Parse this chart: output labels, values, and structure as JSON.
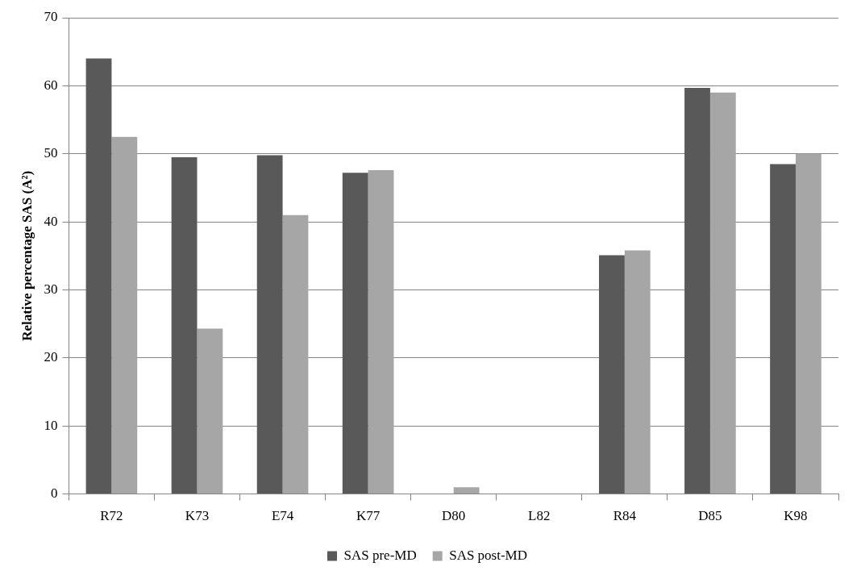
{
  "chart_data": {
    "type": "bar",
    "ylabel": "Relative percentage SAS (A²)",
    "categories": [
      "R72",
      "K73",
      "E74",
      "K77",
      "D80",
      "L82",
      "R84",
      "D85",
      "K98"
    ],
    "series": [
      {
        "name": "SAS pre-MD",
        "color": "#595959",
        "values": [
          64,
          49.5,
          49.8,
          47.2,
          0,
          0,
          35.1,
          59.7,
          48.5
        ]
      },
      {
        "name": "SAS post-MD",
        "color": "#a6a6a6",
        "values": [
          52.5,
          24.3,
          41,
          47.6,
          1,
          0,
          35.8,
          59,
          50
        ]
      }
    ],
    "ylim": [
      0,
      70
    ],
    "yticks": [
      0,
      10,
      20,
      30,
      40,
      50,
      60,
      70
    ],
    "grid": "y",
    "legend": "bottom"
  }
}
